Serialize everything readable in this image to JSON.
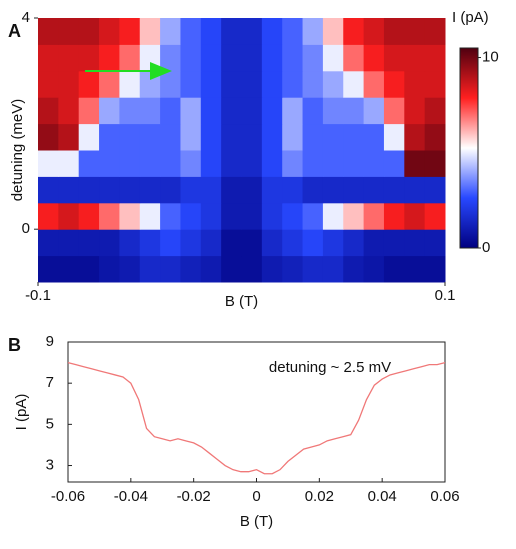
{
  "chart_data": [
    {
      "type": "heatmap",
      "label": "A",
      "x": [
        -0.095,
        -0.085,
        -0.075,
        -0.065,
        -0.055,
        -0.045,
        -0.035,
        -0.025,
        -0.015,
        -0.005,
        0.005,
        0.015,
        0.025,
        0.035,
        0.045,
        0.055,
        0.065,
        0.075,
        0.085,
        0.095
      ],
      "y": [
        -0.75,
        -0.25,
        0.25,
        0.75,
        1.25,
        1.75,
        2.25,
        2.75,
        3.25,
        3.75
      ],
      "z": [
        [
          0.5,
          0.5,
          0.5,
          0.8,
          1,
          1.5,
          1.5,
          1.2,
          1,
          0.5,
          0.5,
          1,
          1.2,
          1.5,
          1.5,
          1,
          0.8,
          0.5,
          0.5,
          0.5
        ],
        [
          1,
          1,
          1,
          1,
          1.5,
          2,
          2.5,
          2,
          1.5,
          0.5,
          0.5,
          1.5,
          2,
          2.5,
          2,
          1.5,
          1,
          1,
          1,
          1
        ],
        [
          8,
          8.5,
          8,
          7,
          6,
          5,
          3,
          2.5,
          2,
          1,
          1,
          2,
          2.5,
          3,
          5,
          6,
          7,
          8,
          8.5,
          8
        ],
        [
          1.5,
          1.5,
          1.5,
          1.5,
          1.5,
          1.5,
          1.5,
          2,
          2,
          1,
          1,
          2,
          2,
          1.5,
          1.5,
          1.5,
          1.5,
          1.5,
          1.5,
          1.5
        ],
        [
          5,
          5,
          3,
          3,
          3,
          3,
          3,
          3.5,
          2.5,
          1.5,
          1.5,
          2.5,
          3.5,
          3,
          3,
          3,
          3,
          3,
          10,
          10
        ],
        [
          9.5,
          9,
          5,
          3,
          3,
          3,
          3,
          4,
          2.5,
          1.5,
          1.5,
          2.5,
          4,
          3,
          3,
          3,
          3,
          5,
          9,
          9.5
        ],
        [
          9,
          8.5,
          7,
          4,
          3.5,
          3.5,
          3,
          4,
          2.5,
          1.5,
          1.5,
          2.5,
          4,
          3,
          3.5,
          3.5,
          4,
          7,
          8.5,
          9
        ],
        [
          8.5,
          8.5,
          8,
          7,
          5,
          4,
          3.5,
          3,
          2.5,
          1.5,
          1.5,
          2.5,
          3,
          3.5,
          4,
          5,
          7,
          8,
          8.5,
          8.5
        ],
        [
          8.5,
          8.5,
          8.5,
          8,
          7,
          5,
          3.5,
          3,
          2.5,
          1.5,
          1.5,
          2.5,
          3,
          3.5,
          5,
          7,
          8,
          8.5,
          8.5,
          8.5
        ],
        [
          9,
          9,
          9,
          8.5,
          8,
          6,
          4,
          3,
          2.5,
          1.5,
          1.5,
          2.5,
          3,
          4,
          6,
          8,
          8.5,
          9,
          9,
          9
        ]
      ],
      "xlim": [
        -0.1,
        0.1
      ],
      "xticks": [
        -0.1,
        0.1
      ],
      "ylim": [
        -1,
        4
      ],
      "yticks": [
        0,
        4
      ],
      "xlabel": "B (T)",
      "ylabel": "detuning (meV)",
      "colorbar": {
        "title": "I (pA)",
        "lim": [
          0,
          10.5
        ],
        "ticks": [
          0,
          10
        ],
        "colors": [
          "#000080",
          "#2848ff",
          "#ffffff",
          "#ff2020",
          "#500010"
        ]
      }
    },
    {
      "type": "line",
      "label": "B",
      "x": [
        -0.06,
        -0.0575,
        -0.055,
        -0.0525,
        -0.05,
        -0.0475,
        -0.045,
        -0.0425,
        -0.04,
        -0.0375,
        -0.035,
        -0.0325,
        -0.03,
        -0.0275,
        -0.025,
        -0.0225,
        -0.02,
        -0.0175,
        -0.015,
        -0.0125,
        -0.01,
        -0.0075,
        -0.005,
        -0.0025,
        0,
        0.0025,
        0.005,
        0.0075,
        0.01,
        0.0125,
        0.015,
        0.0175,
        0.02,
        0.0225,
        0.025,
        0.0275,
        0.03,
        0.0325,
        0.035,
        0.0375,
        0.04,
        0.0425,
        0.045,
        0.0475,
        0.05,
        0.0525,
        0.055,
        0.0575,
        0.06
      ],
      "values": [
        8.0,
        7.9,
        7.8,
        7.7,
        7.6,
        7.5,
        7.4,
        7.3,
        7.0,
        6.2,
        4.8,
        4.4,
        4.3,
        4.2,
        4.3,
        4.2,
        4.1,
        3.9,
        3.6,
        3.3,
        3.0,
        2.8,
        2.7,
        2.7,
        2.8,
        2.6,
        2.6,
        2.8,
        3.2,
        3.5,
        3.8,
        3.9,
        4.0,
        4.2,
        4.3,
        4.4,
        4.5,
        5.2,
        6.2,
        6.9,
        7.2,
        7.4,
        7.5,
        7.6,
        7.7,
        7.8,
        7.9,
        7.9,
        8.0
      ],
      "color": "#f07878",
      "xlim": [
        -0.06,
        0.06
      ],
      "xticks": [
        -0.06,
        -0.04,
        -0.02,
        0,
        0.02,
        0.04,
        0.06
      ],
      "ylim": [
        2.2,
        9
      ],
      "yticks": [
        3,
        5,
        7,
        9
      ],
      "xlabel": "B (T)",
      "ylabel": "I (pA)",
      "annotation": "detuning ~ 2.5 mV"
    }
  ]
}
